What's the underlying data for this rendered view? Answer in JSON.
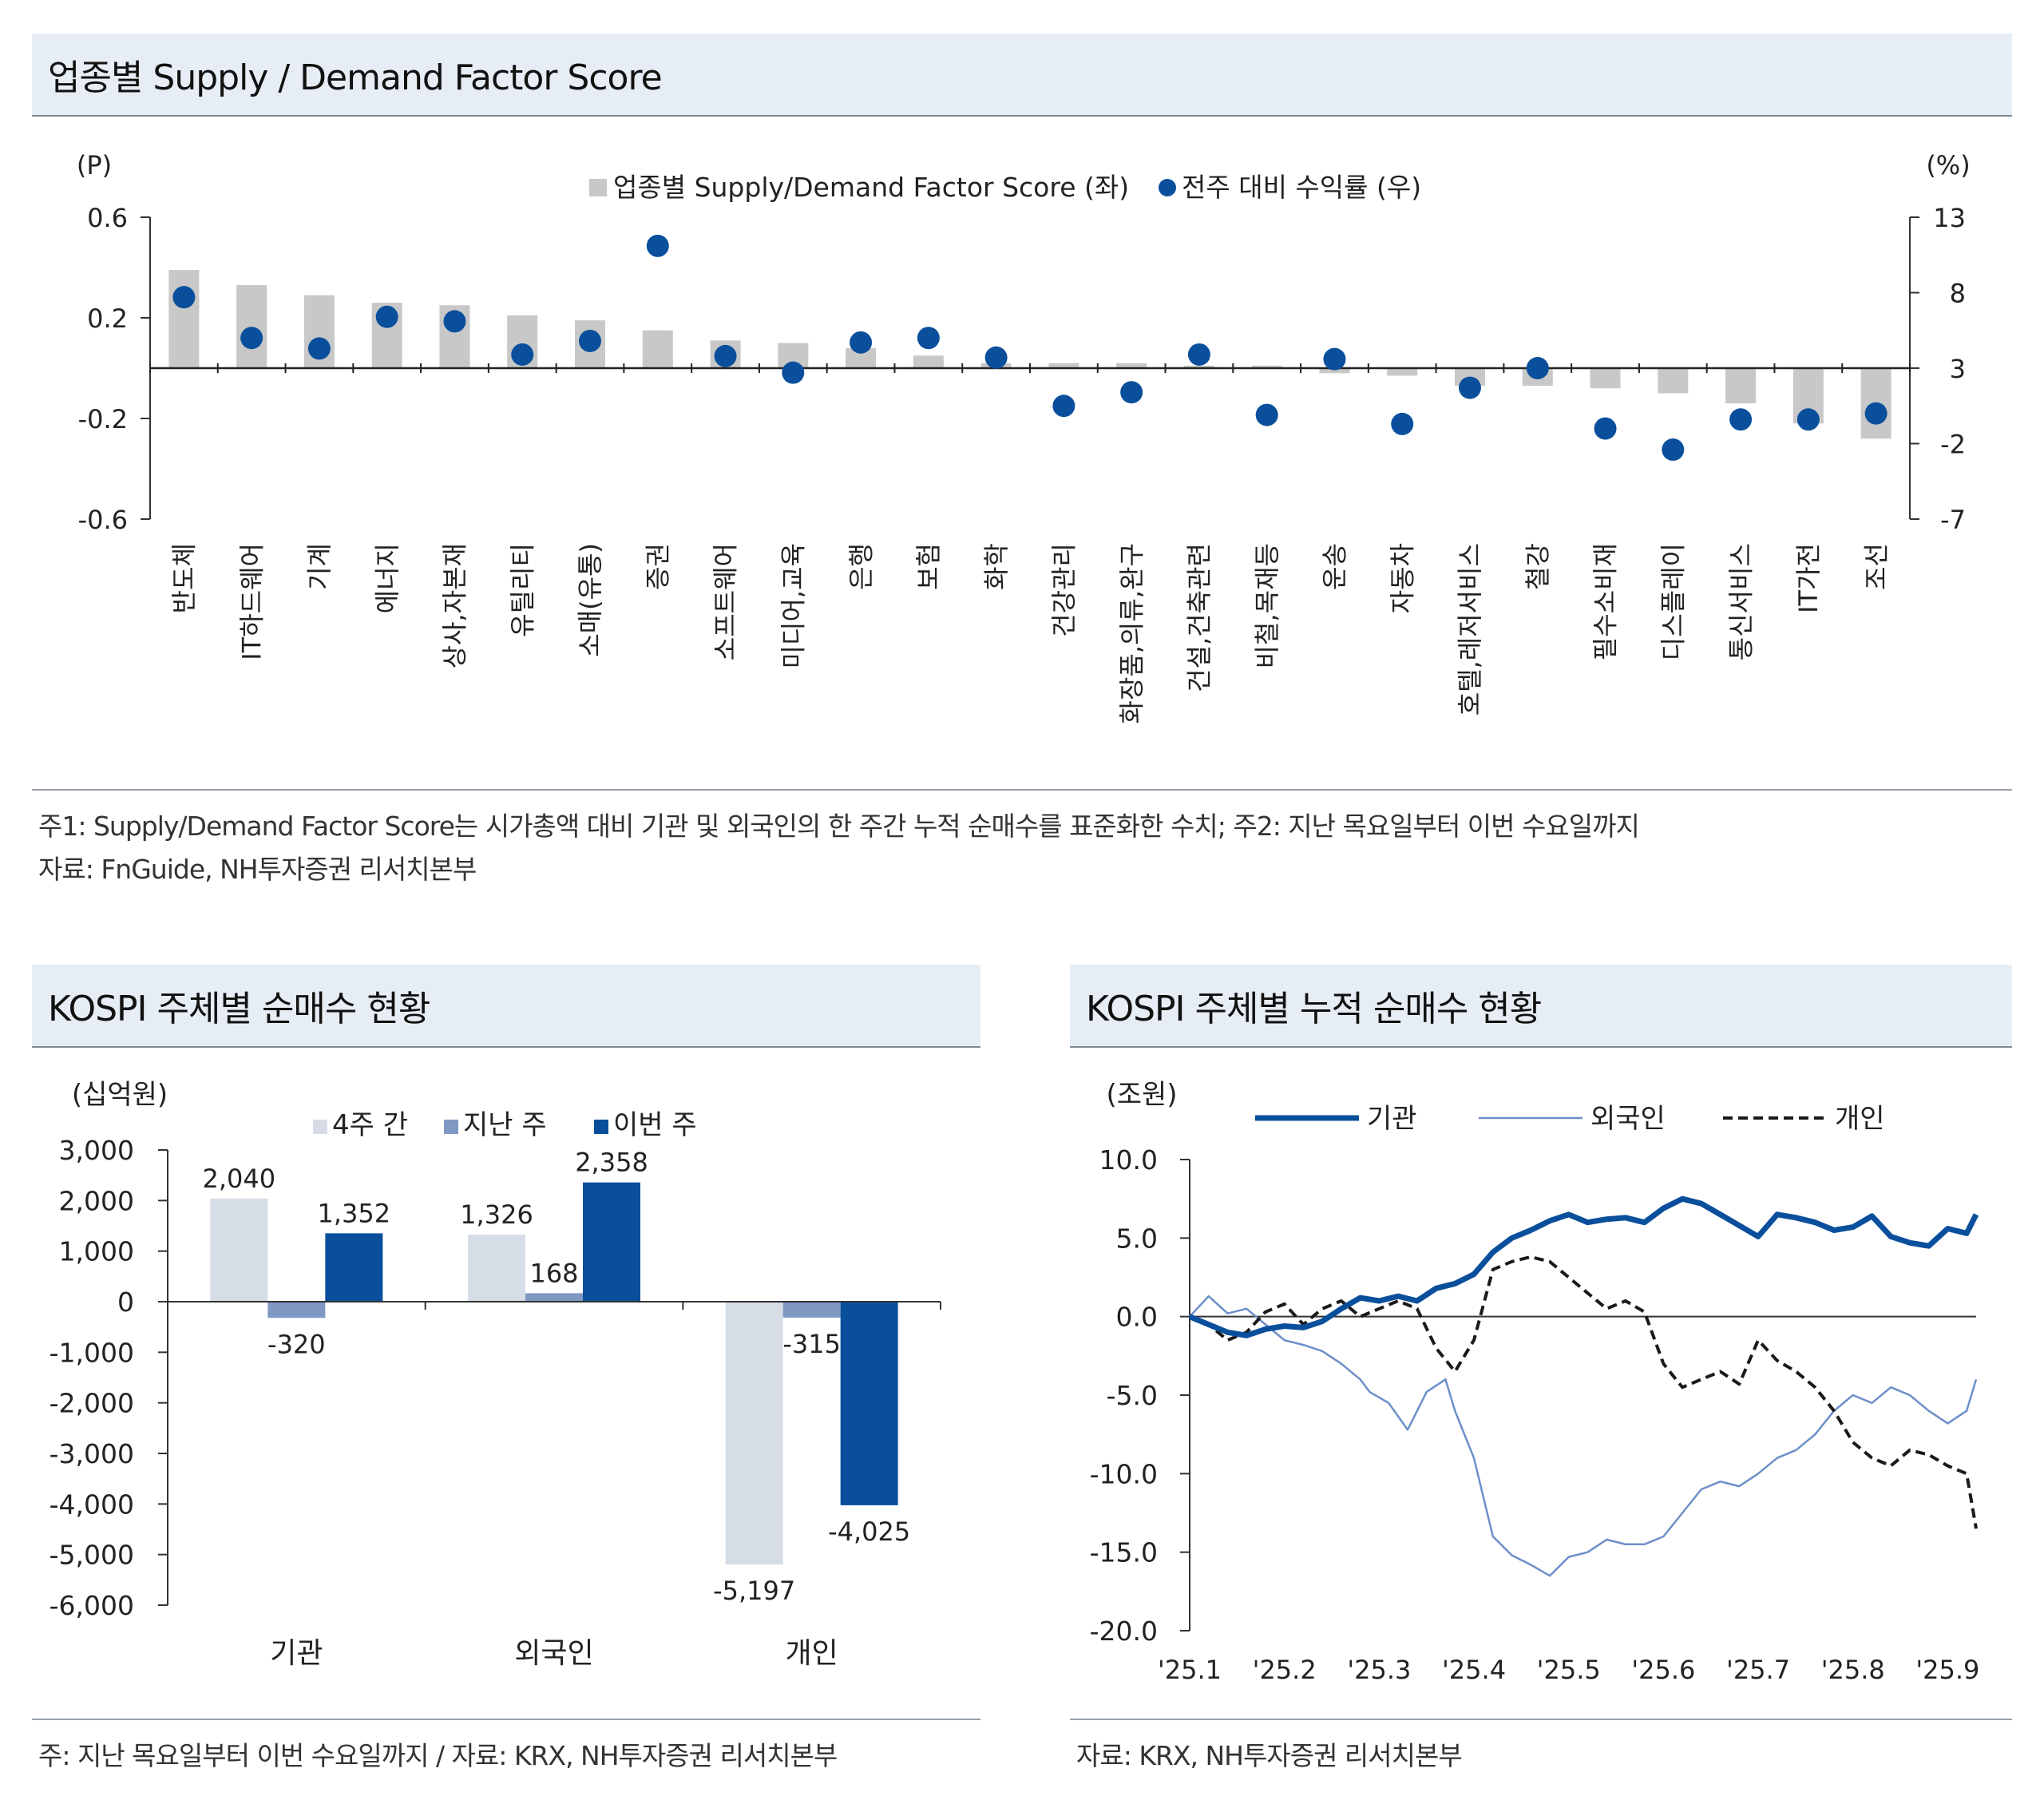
{
  "top": {
    "title": "업종별 Supply / Demand Factor Score",
    "note1": "주1: Supply/Demand Factor Score는 시가총액 대비 기관 및 외국인의 한 주간 누적 순매수를 표준화한 수치; 주2: 지난 목요일부터 이번 수요일까지",
    "note2": "자료: FnGuide, NH투자증권 리서치본부"
  },
  "bottom_left": {
    "title": "KOSPI 주체별 순매수 현황",
    "note": "주: 지난 목요일부터 이번 수요일까지 / 자료: KRX, NH투자증권 리서치본부"
  },
  "bottom_right": {
    "title": "KOSPI 주체별 누적 순매수 현황",
    "note": "자료: KRX, NH투자증권 리서치본부"
  },
  "chart_data": [
    {
      "type": "bar",
      "title": "업종별 Supply / Demand Factor Score",
      "ylabel_left": "(P)",
      "ylabel_right": "(%)",
      "ylim_left": [
        -0.6,
        0.6
      ],
      "ylim_right": [
        -7,
        13
      ],
      "yticks_left": [
        "0.6",
        "0.2",
        "-0.2",
        "-0.6"
      ],
      "yticks_right": [
        "13",
        "8",
        "3",
        "-2",
        "-7"
      ],
      "categories": [
        "반도체",
        "IT하드웨어",
        "기계",
        "에너지",
        "상사,자본재",
        "유틸리티",
        "소매(유통)",
        "증권",
        "소프트웨어",
        "미디어,교육",
        "은행",
        "보험",
        "화학",
        "건강관리",
        "화장품,의류,완구",
        "건설,건축관련",
        "비철,목재등",
        "운송",
        "자동차",
        "호텔,레저서비스",
        "철강",
        "필수소비재",
        "디스플레이",
        "통신서비스",
        "IT가전",
        "조선"
      ],
      "series": [
        {
          "name": "업종별 Supply/Demand Factor Score (좌)",
          "kind": "bar",
          "axis": "left",
          "color": "#c8c8c8",
          "values": [
            0.39,
            0.33,
            0.29,
            0.26,
            0.25,
            0.21,
            0.19,
            0.15,
            0.11,
            0.1,
            0.08,
            0.05,
            0.02,
            0.02,
            0.02,
            0.01,
            0.01,
            -0.02,
            -0.03,
            -0.07,
            -0.07,
            -0.08,
            -0.1,
            -0.14,
            -0.22,
            -0.28
          ]
        },
        {
          "name": "전주 대비 수익률 (우)",
          "kind": "scatter",
          "axis": "right",
          "color": "#0a4f9c",
          "values": [
            7.7,
            5.0,
            4.3,
            6.4,
            6.1,
            3.9,
            4.8,
            11.1,
            3.8,
            2.7,
            4.7,
            5.0,
            3.7,
            0.5,
            1.4,
            3.9,
            -0.1,
            3.6,
            -0.7,
            1.7,
            3.0,
            -1.0,
            -2.4,
            -0.4,
            -0.4,
            0.0
          ]
        }
      ]
    },
    {
      "type": "bar",
      "title": "KOSPI 주체별 순매수 현황",
      "ylabel": "(십억원)",
      "ylim": [
        -6000,
        3000
      ],
      "yticks": [
        "3,000",
        "2,000",
        "1,000",
        "0",
        "-1,000",
        "-2,000",
        "-3,000",
        "-4,000",
        "-5,000",
        "-6,000"
      ],
      "categories": [
        "기관",
        "외국인",
        "개인"
      ],
      "series": [
        {
          "name": "4주 간",
          "color": "#d6dde7",
          "values": [
            2040,
            1326,
            -5197
          ],
          "labels": [
            "2,040",
            "1,326",
            "-5,197"
          ]
        },
        {
          "name": "지난 주",
          "color": "#7f98c4",
          "values": [
            -320,
            168,
            -315
          ],
          "labels": [
            "-320",
            "168",
            "-315"
          ]
        },
        {
          "name": "이번 주",
          "color": "#0a4f9c",
          "values": [
            1352,
            2358,
            -4025
          ],
          "labels": [
            "1,352",
            "2,358",
            "-4,025"
          ]
        }
      ]
    },
    {
      "type": "line",
      "title": "KOSPI 주체별 누적 순매수 현황",
      "ylabel": "(조원)",
      "ylim": [
        -20,
        10
      ],
      "yticks": [
        "10.0",
        "5.0",
        "0.0",
        "-5.0",
        "-10.0",
        "-15.0",
        "-20.0"
      ],
      "xlim": [
        0,
        8.3
      ],
      "xtick_labels": [
        "'25.1",
        "'25.2",
        "'25.3",
        "'25.4",
        "'25.5",
        "'25.6",
        "'25.7",
        "'25.8",
        "'25.9"
      ],
      "series": [
        {
          "name": "기관",
          "style": "thick",
          "color": "#0a4f9c",
          "points": [
            [
              0,
              0
            ],
            [
              0.2,
              -0.5
            ],
            [
              0.4,
              -1.0
            ],
            [
              0.6,
              -1.2
            ],
            [
              0.8,
              -0.8
            ],
            [
              1.0,
              -0.6
            ],
            [
              1.2,
              -0.7
            ],
            [
              1.4,
              -0.3
            ],
            [
              1.6,
              0.5
            ],
            [
              1.8,
              1.2
            ],
            [
              2.0,
              1.0
            ],
            [
              2.2,
              1.3
            ],
            [
              2.4,
              1.0
            ],
            [
              2.6,
              1.8
            ],
            [
              2.8,
              2.1
            ],
            [
              3.0,
              2.7
            ],
            [
              3.2,
              4.1
            ],
            [
              3.4,
              5.0
            ],
            [
              3.6,
              5.5
            ],
            [
              3.8,
              6.1
            ],
            [
              4.0,
              6.5
            ],
            [
              4.2,
              6.0
            ],
            [
              4.4,
              6.2
            ],
            [
              4.6,
              6.3
            ],
            [
              4.8,
              6.0
            ],
            [
              5.0,
              6.9
            ],
            [
              5.2,
              7.5
            ],
            [
              5.4,
              7.2
            ],
            [
              5.6,
              6.5
            ],
            [
              5.8,
              5.8
            ],
            [
              6.0,
              5.1
            ],
            [
              6.2,
              6.5
            ],
            [
              6.4,
              6.3
            ],
            [
              6.6,
              6.0
            ],
            [
              6.8,
              5.5
            ],
            [
              7.0,
              5.7
            ],
            [
              7.2,
              6.4
            ],
            [
              7.4,
              5.1
            ],
            [
              7.6,
              4.7
            ],
            [
              7.8,
              4.5
            ],
            [
              8.0,
              5.6
            ],
            [
              8.2,
              5.3
            ],
            [
              8.3,
              6.5
            ]
          ]
        },
        {
          "name": "외국인",
          "style": "thin",
          "color": "#6d8fc9",
          "points": [
            [
              0,
              0
            ],
            [
              0.2,
              1.3
            ],
            [
              0.4,
              0.2
            ],
            [
              0.6,
              0.5
            ],
            [
              0.8,
              -0.5
            ],
            [
              1.0,
              -1.5
            ],
            [
              1.2,
              -1.8
            ],
            [
              1.4,
              -2.2
            ],
            [
              1.6,
              -3.0
            ],
            [
              1.8,
              -4.0
            ],
            [
              1.9,
              -4.8
            ],
            [
              2.1,
              -5.5
            ],
            [
              2.3,
              -7.2
            ],
            [
              2.5,
              -4.8
            ],
            [
              2.7,
              -4.0
            ],
            [
              2.8,
              -6.0
            ],
            [
              3.0,
              -9.0
            ],
            [
              3.2,
              -14.0
            ],
            [
              3.4,
              -15.2
            ],
            [
              3.6,
              -15.8
            ],
            [
              3.8,
              -16.5
            ],
            [
              4.0,
              -15.3
            ],
            [
              4.2,
              -15.0
            ],
            [
              4.4,
              -14.2
            ],
            [
              4.6,
              -14.5
            ],
            [
              4.8,
              -14.5
            ],
            [
              5.0,
              -14.0
            ],
            [
              5.2,
              -12.5
            ],
            [
              5.4,
              -11.0
            ],
            [
              5.6,
              -10.5
            ],
            [
              5.8,
              -10.8
            ],
            [
              6.0,
              -10.0
            ],
            [
              6.2,
              -9.0
            ],
            [
              6.4,
              -8.5
            ],
            [
              6.6,
              -7.5
            ],
            [
              6.8,
              -6.0
            ],
            [
              7.0,
              -5.0
            ],
            [
              7.2,
              -5.5
            ],
            [
              7.4,
              -4.5
            ],
            [
              7.6,
              -5.0
            ],
            [
              7.8,
              -6.0
            ],
            [
              8.0,
              -6.8
            ],
            [
              8.2,
              -6.0
            ],
            [
              8.3,
              -4.0
            ]
          ]
        },
        {
          "name": "개인",
          "style": "dashed",
          "color": "#1a1a1a",
          "points": [
            [
              0,
              0
            ],
            [
              0.2,
              -0.5
            ],
            [
              0.4,
              -1.5
            ],
            [
              0.6,
              -1.0
            ],
            [
              0.8,
              0.3
            ],
            [
              1.0,
              0.8
            ],
            [
              1.2,
              -0.5
            ],
            [
              1.4,
              0.5
            ],
            [
              1.6,
              1.0
            ],
            [
              1.8,
              0.0
            ],
            [
              2.0,
              0.5
            ],
            [
              2.2,
              1.0
            ],
            [
              2.4,
              0.5
            ],
            [
              2.6,
              -2.0
            ],
            [
              2.8,
              -3.5
            ],
            [
              3.0,
              -1.5
            ],
            [
              3.2,
              3.0
            ],
            [
              3.4,
              3.5
            ],
            [
              3.6,
              3.8
            ],
            [
              3.8,
              3.5
            ],
            [
              4.0,
              2.5
            ],
            [
              4.2,
              1.5
            ],
            [
              4.4,
              0.5
            ],
            [
              4.6,
              1.0
            ],
            [
              4.8,
              0.3
            ],
            [
              5.0,
              -3.0
            ],
            [
              5.2,
              -4.5
            ],
            [
              5.4,
              -4.0
            ],
            [
              5.6,
              -3.5
            ],
            [
              5.8,
              -4.3
            ],
            [
              6.0,
              -1.5
            ],
            [
              6.2,
              -2.8
            ],
            [
              6.4,
              -3.5
            ],
            [
              6.6,
              -4.5
            ],
            [
              6.8,
              -6.0
            ],
            [
              7.0,
              -8.0
            ],
            [
              7.2,
              -9.0
            ],
            [
              7.4,
              -9.5
            ],
            [
              7.6,
              -8.5
            ],
            [
              7.8,
              -8.8
            ],
            [
              8.0,
              -9.5
            ],
            [
              8.2,
              -10.0
            ],
            [
              8.3,
              -13.5
            ]
          ]
        }
      ]
    }
  ]
}
